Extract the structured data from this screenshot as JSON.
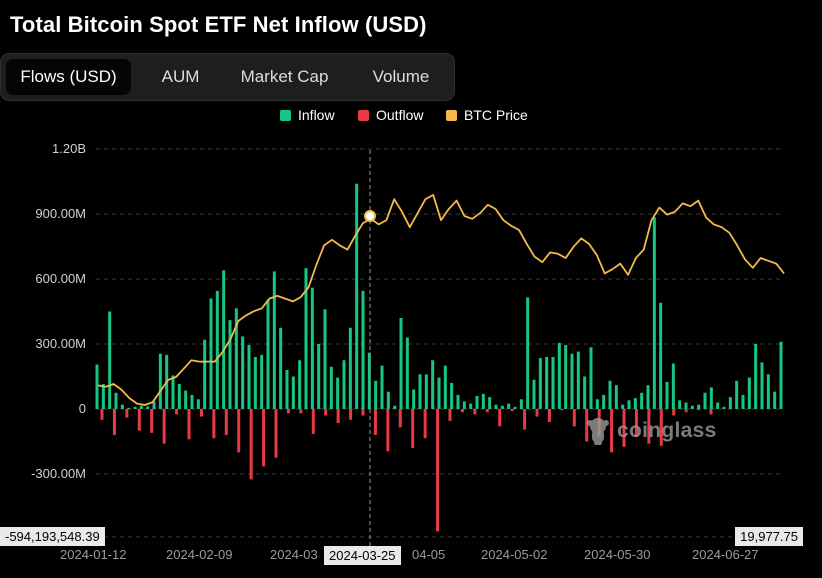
{
  "title": "Total Bitcoin Spot ETF Net Inflow (USD)",
  "tabs": [
    {
      "label": "Flows (USD)",
      "active": true
    },
    {
      "label": "AUM",
      "active": false
    },
    {
      "label": "Market Cap",
      "active": false
    },
    {
      "label": "Volume",
      "active": false
    }
  ],
  "legend": [
    {
      "label": "Inflow",
      "color": "#16c784"
    },
    {
      "label": "Outflow",
      "color": "#ea3943"
    },
    {
      "label": "BTC Price",
      "color": "#f3ba48"
    }
  ],
  "crosshair": {
    "x_label": "2024-03-25",
    "y_left_label": "-594,193,548.39",
    "y_right_label": "19,977.75"
  },
  "watermark": "coinglass",
  "chart_data": {
    "type": "bar",
    "x_ticks": [
      "2024-01-12",
      "2024-02-09",
      "2024-03",
      "2024-03-25",
      "04-05",
      "2024-05-02",
      "2024-05-30",
      "2024-06-27"
    ],
    "y_ticks": [
      "1.20B",
      "900.00M",
      "600.00M",
      "300.00M",
      "0",
      "-300.00M"
    ],
    "ylim": [
      -594193548.39,
      1200000000
    ],
    "series": [
      {
        "name": "Inflow",
        "color": "#16c784",
        "values_musd": [
          205,
          115,
          450,
          75,
          20,
          5,
          10,
          15,
          12,
          35,
          255,
          250,
          155,
          115,
          85,
          65,
          45,
          320,
          510,
          545,
          640,
          410,
          465,
          335,
          295,
          240,
          250,
          505,
          635,
          375,
          180,
          150,
          225,
          650,
          560,
          300,
          460,
          195,
          145,
          225,
          375,
          1040,
          545,
          260,
          130,
          200,
          80,
          15,
          420,
          330,
          90,
          160,
          160,
          225,
          145,
          200,
          120,
          65,
          35,
          25,
          60,
          70,
          55,
          20,
          15,
          25,
          10,
          45,
          515,
          135,
          235,
          240,
          240,
          305,
          295,
          255,
          265,
          150,
          285,
          45,
          65,
          130,
          110,
          20,
          40,
          50,
          75,
          110,
          885,
          490,
          125,
          210,
          40,
          30,
          15,
          20,
          75,
          100,
          30,
          10,
          55,
          130,
          65,
          145,
          300,
          215,
          160,
          80,
          310
        ],
        "values": [
          205000000,
          115000000,
          450000000,
          75000000,
          20000000,
          5000000,
          10000000,
          15000000,
          12000000,
          35000000,
          255000000,
          250000000,
          155000000,
          115000000,
          85000000,
          65000000,
          45000000,
          320000000,
          510000000,
          545000000,
          640000000,
          410000000,
          465000000,
          335000000,
          295000000,
          240000000,
          250000000,
          505000000,
          635000000,
          375000000,
          180000000,
          150000000,
          225000000,
          650000000,
          560000000,
          300000000,
          460000000,
          195000000,
          145000000,
          225000000,
          375000000,
          1040000000,
          545000000,
          260000000,
          130000000,
          200000000,
          80000000,
          15000000,
          420000000,
          330000000,
          90000000,
          160000000,
          160000000,
          225000000,
          145000000,
          200000000,
          120000000,
          65000000,
          35000000,
          25000000,
          60000000,
          70000000,
          55000000,
          20000000,
          15000000,
          25000000,
          10000000,
          45000000,
          515000000,
          135000000,
          235000000,
          240000000,
          240000000,
          305000000,
          295000000,
          255000000,
          265000000,
          150000000,
          285000000,
          45000000,
          65000000,
          130000000,
          110000000,
          20000000,
          40000000,
          50000000,
          75000000,
          110000000,
          885000000,
          490000000,
          125000000,
          210000000,
          40000000,
          30000000,
          15000000,
          20000000,
          75000000,
          100000000,
          30000000,
          10000000,
          55000000,
          130000000,
          65000000,
          145000000,
          300000000,
          215000000,
          160000000,
          80000000,
          310000000
        ]
      },
      {
        "name": "Outflow",
        "color": "#ea3943",
        "values": [
          -50000000,
          -120000000,
          -40000000,
          -100000000,
          -110000000,
          -160000000,
          -25000000,
          -140000000,
          -35000000,
          -135000000,
          -120000000,
          -200000000,
          -325000000,
          -265000000,
          -225000000,
          -20000000,
          -20000000,
          -115000000,
          -30000000,
          -65000000,
          -50000000,
          -30000000,
          -120000000,
          -195000000,
          -85000000,
          -180000000,
          -135000000,
          -565000000,
          -55000000,
          -15000000,
          -25000000,
          -15000000,
          -80000000,
          -10000000,
          -95000000,
          -35000000,
          -60000000,
          -5000000,
          -80000000,
          -150000000,
          -125000000,
          -200000000,
          -175000000,
          -130000000,
          -160000000,
          -170000000,
          -30000000,
          -15000000,
          -5000000,
          -25000000
        ]
      },
      {
        "name": "BTC Price",
        "color": "#f3ba48",
        "note": "right axis, plotted as relative curve",
        "values": [
          100,
          99,
          101,
          97,
          91,
          87,
          86,
          88,
          96,
          104,
          106,
          112,
          118,
          117,
          117,
          117,
          124,
          133,
          146,
          150,
          153,
          155,
          162,
          164,
          162,
          160,
          163,
          170,
          186,
          200,
          204,
          200,
          197,
          207,
          216,
          219,
          215,
          218,
          233,
          224,
          213,
          223,
          233,
          236,
          218,
          226,
          232,
          221,
          219,
          223,
          229,
          226,
          218,
          214,
          211,
          201,
          192,
          188,
          195,
          194,
          191,
          199,
          205,
          201,
          193,
          180,
          183,
          187,
          179,
          191,
          197,
          218,
          227,
          222,
          224,
          230,
          228,
          232,
          220,
          215,
          213,
          209,
          200,
          190,
          184,
          191,
          189,
          187,
          180
        ]
      }
    ]
  }
}
